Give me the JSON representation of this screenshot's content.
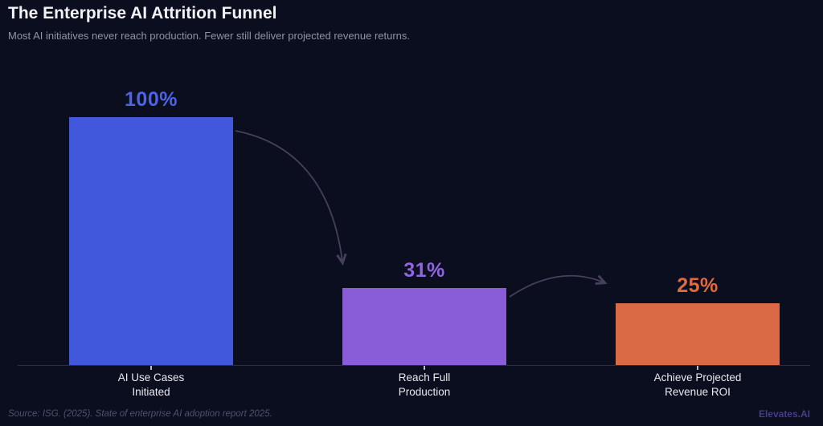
{
  "header": {
    "title": "The Enterprise AI Attrition Funnel",
    "subtitle": "Most AI initiatives never reach production. Fewer still deliver projected revenue returns."
  },
  "chart_data": {
    "type": "bar",
    "title": "The Enterprise AI Attrition Funnel",
    "subtitle": "Most AI initiatives never reach production. Fewer still deliver projected revenue returns.",
    "categories": [
      "AI Use Cases Initiated",
      "Reach Full Production",
      "Achieve Projected Revenue ROI"
    ],
    "values": [
      100,
      31,
      25
    ],
    "value_labels": [
      "100%",
      "31%",
      "25%"
    ],
    "bar_colors": [
      "#4157dc",
      "#8a5dd8",
      "#d96a45"
    ],
    "label_colors": [
      "#4a63e8",
      "#9164e2",
      "#e06a3c"
    ],
    "xlabel": "",
    "ylabel": "",
    "ylim": [
      0,
      100
    ],
    "grid": false,
    "legend": "none",
    "annotations": [
      "curved arrow from bar 1 down to bar 2",
      "curved arrow from bar 2 over to bar 3"
    ]
  },
  "bars": [
    {
      "value_label": "100%",
      "label_line1": "AI Use Cases",
      "label_line2": "Initiated"
    },
    {
      "value_label": "31%",
      "label_line1": "Reach Full",
      "label_line2": "Production"
    },
    {
      "value_label": "25%",
      "label_line1": "Achieve Projected",
      "label_line2": "Revenue ROI"
    }
  ],
  "footer": {
    "source": "Source: ISG. (2025). State of enterprise AI adoption report 2025.",
    "brand": "Elevates.AI"
  },
  "colors": {
    "background": "#0b0e1e",
    "arrow": "#45415c",
    "axis_line": "#2b2f44",
    "title_text": "#f2f3f7",
    "subtitle_text": "#8f93a6",
    "source_text": "#4d5272",
    "brand_text": "#453e85"
  }
}
